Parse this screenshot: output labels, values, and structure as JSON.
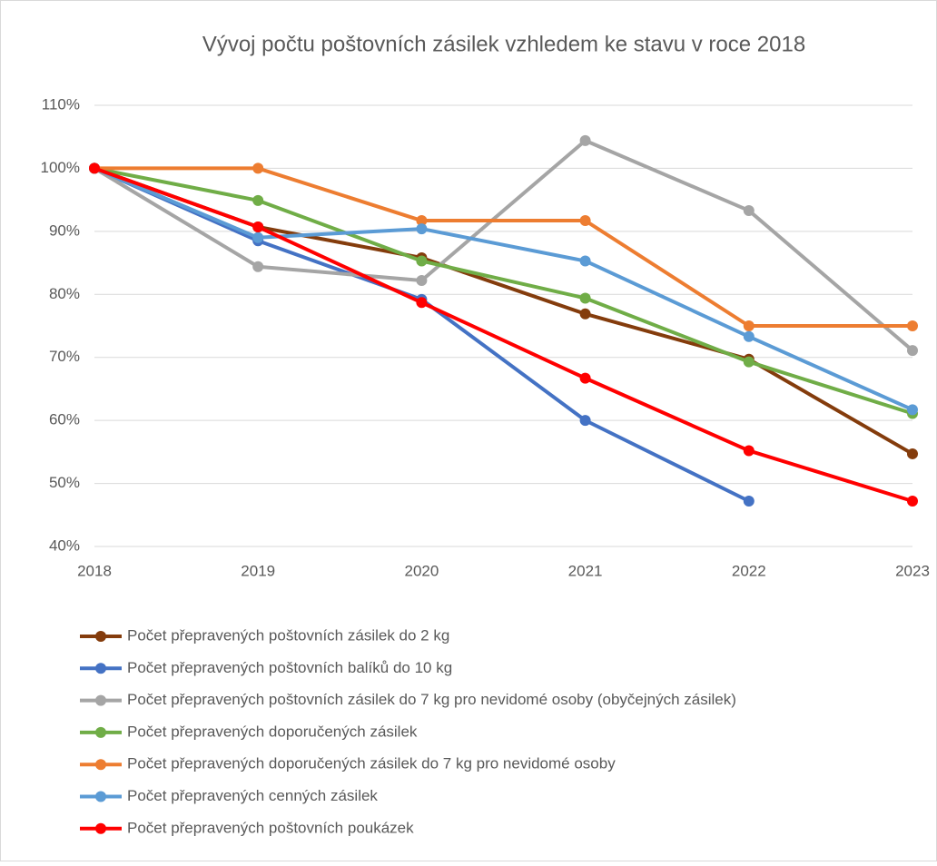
{
  "chart_data": {
    "type": "line",
    "title": "Vývoj počtu poštovních zásilek vzhledem ke stavu v roce 2018",
    "x": [
      2018,
      2019,
      2020,
      2021,
      2022,
      2023
    ],
    "xlim": [
      2018,
      2023
    ],
    "xticks": [
      2018,
      2019,
      2020,
      2021,
      2022,
      2023
    ],
    "ylim": [
      40,
      110
    ],
    "yticks": [
      {
        "value": 40,
        "label": "40%"
      },
      {
        "value": 50,
        "label": "50%"
      },
      {
        "value": 60,
        "label": "60%"
      },
      {
        "value": 70,
        "label": "70%"
      },
      {
        "value": 80,
        "label": "80%"
      },
      {
        "value": 90,
        "label": "90%"
      },
      {
        "value": 100,
        "label": "100%"
      },
      {
        "value": 110,
        "label": "110%"
      }
    ],
    "grid": true,
    "legend": "bottom",
    "series": [
      {
        "name": "Počet přepravených poštovních zásilek do 2 kg",
        "color": "#843c0c",
        "values": [
          100,
          90.7,
          85.8,
          76.9,
          69.7,
          54.7
        ]
      },
      {
        "name": "Počet přepravených poštovních balíků do 10 kg",
        "color": "#4472c4",
        "values": [
          100,
          88.5,
          79.2,
          60,
          47.2,
          null
        ]
      },
      {
        "name": "Počet přepravených poštovních zásilek do 7 kg pro nevidomé osoby (obyčejných zásilek)",
        "color": "#a5a5a5",
        "values": [
          100,
          84.4,
          82.2,
          104.4,
          93.3,
          71.1
        ]
      },
      {
        "name": "Počet přepravených doporučených zásilek",
        "color": "#70ad47",
        "values": [
          100,
          94.9,
          85.3,
          79.4,
          69.3,
          61.1
        ]
      },
      {
        "name": "Počet přepravených doporučených zásilek do 7 kg pro nevidomé osoby",
        "color": "#ed7d31",
        "values": [
          100,
          100,
          91.7,
          91.7,
          75,
          75
        ]
      },
      {
        "name": "Počet přepravených cenných zásilek",
        "color": "#5b9bd5",
        "values": [
          100,
          89,
          90.4,
          85.3,
          73.3,
          61.7
        ]
      },
      {
        "name": "Počet přepravených poštovních poukázek",
        "color": "#ff0000",
        "values": [
          100,
          90.7,
          78.7,
          66.7,
          55.2,
          47.2
        ]
      }
    ]
  }
}
